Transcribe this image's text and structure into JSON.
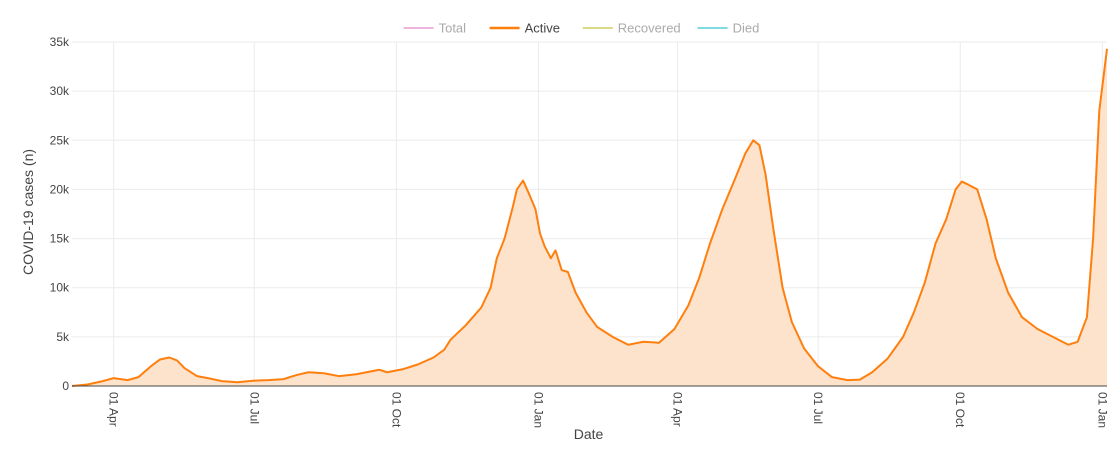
{
  "chart_data": {
    "type": "area",
    "xlabel": "Date",
    "ylabel": "COVID-19 cases (n)",
    "ylim": [
      0,
      35000
    ],
    "y_ticks": [
      0,
      5000,
      10000,
      15000,
      20000,
      25000,
      30000,
      35000
    ],
    "y_tick_labels": [
      "0",
      "5k",
      "10k",
      "15k",
      "20k",
      "25k",
      "30k",
      "35k"
    ],
    "x_range": [
      "2020-03-05",
      "2022-01-04"
    ],
    "x_ticks": [
      {
        "date": "2020-04-01",
        "label": "01 Apr"
      },
      {
        "date": "2020-07-01",
        "label": "01 Jul"
      },
      {
        "date": "2020-10-01",
        "label": "01 Oct"
      },
      {
        "date": "2021-01-01",
        "label": "01 Jan"
      },
      {
        "date": "2021-04-01",
        "label": "01 Apr"
      },
      {
        "date": "2021-07-01",
        "label": "01 Jul"
      },
      {
        "date": "2021-10-01",
        "label": "01 Oct"
      },
      {
        "date": "2022-01-01",
        "label": "01 Jan"
      }
    ],
    "grid": true,
    "legend_position": "top-center",
    "legend": [
      {
        "name": "Total",
        "color": "#e377c2",
        "active": false
      },
      {
        "name": "Active",
        "color": "#ff7f0e",
        "active": true
      },
      {
        "name": "Recovered",
        "color": "#bcbd22",
        "active": false
      },
      {
        "name": "Died",
        "color": "#17becf",
        "active": false
      }
    ],
    "series": [
      {
        "name": "Active",
        "color": "#ff7f0e",
        "fill": "#fde3cc",
        "points": [
          [
            "2020-03-05",
            0
          ],
          [
            "2020-03-15",
            150
          ],
          [
            "2020-03-25",
            500
          ],
          [
            "2020-04-01",
            800
          ],
          [
            "2020-04-10",
            600
          ],
          [
            "2020-04-17",
            900
          ],
          [
            "2020-04-25",
            2000
          ],
          [
            "2020-05-01",
            2700
          ],
          [
            "2020-05-07",
            2900
          ],
          [
            "2020-05-12",
            2600
          ],
          [
            "2020-05-17",
            1800
          ],
          [
            "2020-05-25",
            1000
          ],
          [
            "2020-06-01",
            800
          ],
          [
            "2020-06-10",
            500
          ],
          [
            "2020-06-20",
            380
          ],
          [
            "2020-07-01",
            550
          ],
          [
            "2020-07-10",
            600
          ],
          [
            "2020-07-20",
            700
          ],
          [
            "2020-07-28",
            1100
          ],
          [
            "2020-08-05",
            1400
          ],
          [
            "2020-08-15",
            1300
          ],
          [
            "2020-08-25",
            1000
          ],
          [
            "2020-09-05",
            1200
          ],
          [
            "2020-09-20",
            1650
          ],
          [
            "2020-09-25",
            1400
          ],
          [
            "2020-10-05",
            1700
          ],
          [
            "2020-10-15",
            2200
          ],
          [
            "2020-10-25",
            2900
          ],
          [
            "2020-11-01",
            3700
          ],
          [
            "2020-11-05",
            4700
          ],
          [
            "2020-11-15",
            6200
          ],
          [
            "2020-11-25",
            8000
          ],
          [
            "2020-12-01",
            10000
          ],
          [
            "2020-12-05",
            13000
          ],
          [
            "2020-12-10",
            15000
          ],
          [
            "2020-12-15",
            18000
          ],
          [
            "2020-12-18",
            20000
          ],
          [
            "2020-12-22",
            20900
          ],
          [
            "2020-12-26",
            19500
          ],
          [
            "2020-12-30",
            18000
          ],
          [
            "2021-01-02",
            15500
          ],
          [
            "2021-01-05",
            14200
          ],
          [
            "2021-01-09",
            13000
          ],
          [
            "2021-01-12",
            13800
          ],
          [
            "2021-01-16",
            11800
          ],
          [
            "2021-01-20",
            11600
          ],
          [
            "2021-01-25",
            9500
          ],
          [
            "2021-02-01",
            7500
          ],
          [
            "2021-02-08",
            6000
          ],
          [
            "2021-02-18",
            5000
          ],
          [
            "2021-02-28",
            4200
          ],
          [
            "2021-03-10",
            4500
          ],
          [
            "2021-03-20",
            4400
          ],
          [
            "2021-03-30",
            5800
          ],
          [
            "2021-04-08",
            8200
          ],
          [
            "2021-04-15",
            11000
          ],
          [
            "2021-04-22",
            14500
          ],
          [
            "2021-04-30",
            18000
          ],
          [
            "2021-05-08",
            21000
          ],
          [
            "2021-05-15",
            23700
          ],
          [
            "2021-05-20",
            25000
          ],
          [
            "2021-05-24",
            24500
          ],
          [
            "2021-05-28",
            21500
          ],
          [
            "2021-06-02",
            16000
          ],
          [
            "2021-06-08",
            10000
          ],
          [
            "2021-06-14",
            6500
          ],
          [
            "2021-06-22",
            3800
          ],
          [
            "2021-07-01",
            2000
          ],
          [
            "2021-07-10",
            900
          ],
          [
            "2021-07-20",
            600
          ],
          [
            "2021-07-28",
            650
          ],
          [
            "2021-08-05",
            1400
          ],
          [
            "2021-08-15",
            2800
          ],
          [
            "2021-08-25",
            5000
          ],
          [
            "2021-09-01",
            7500
          ],
          [
            "2021-09-08",
            10500
          ],
          [
            "2021-09-15",
            14500
          ],
          [
            "2021-09-22",
            17000
          ],
          [
            "2021-09-28",
            20000
          ],
          [
            "2021-10-02",
            20800
          ],
          [
            "2021-10-06",
            20500
          ],
          [
            "2021-10-12",
            20000
          ],
          [
            "2021-10-18",
            17000
          ],
          [
            "2021-10-24",
            13000
          ],
          [
            "2021-11-01",
            9500
          ],
          [
            "2021-11-10",
            7000
          ],
          [
            "2021-11-20",
            5800
          ],
          [
            "2021-11-30",
            5000
          ],
          [
            "2021-12-10",
            4200
          ],
          [
            "2021-12-16",
            4500
          ],
          [
            "2021-12-22",
            7000
          ],
          [
            "2021-12-26",
            15000
          ],
          [
            "2021-12-30",
            28000
          ],
          [
            "2022-01-04",
            34300
          ]
        ]
      }
    ]
  }
}
